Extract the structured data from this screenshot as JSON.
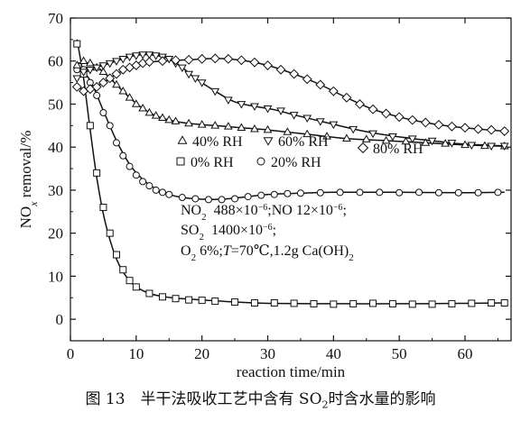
{
  "chart_data": {
    "type": "scatter",
    "xlabel": "reaction time/min",
    "ylabel_html": "NO<tspan font-style=\"italic\" baseline-shift=\"sub\" font-size=\"12\">x</tspan> removal/%",
    "ylabel": "NOx removal/%",
    "xlim": [
      0,
      67
    ],
    "ylim": [
      -5,
      70
    ],
    "xticks": [
      0,
      10,
      20,
      30,
      40,
      50,
      60
    ],
    "yticks": [
      0,
      10,
      20,
      30,
      40,
      50,
      60,
      70
    ],
    "grid": false,
    "legend_position": "middle",
    "series": [
      {
        "name": "0% RH",
        "marker": "square",
        "points": [
          [
            1,
            64
          ],
          [
            2,
            57
          ],
          [
            3,
            45
          ],
          [
            4,
            34
          ],
          [
            5,
            26
          ],
          [
            6,
            20
          ],
          [
            7,
            15
          ],
          [
            8,
            11.5
          ],
          [
            9,
            9
          ],
          [
            10,
            7.5
          ],
          [
            12,
            6
          ],
          [
            14,
            5.2
          ],
          [
            16,
            4.8
          ],
          [
            18,
            4.5
          ],
          [
            20,
            4.4
          ],
          [
            22,
            4.2
          ],
          [
            25,
            4
          ],
          [
            28,
            3.8
          ],
          [
            31,
            3.8
          ],
          [
            34,
            3.7
          ],
          [
            37,
            3.6
          ],
          [
            40,
            3.5
          ],
          [
            43,
            3.6
          ],
          [
            46,
            3.7
          ],
          [
            49,
            3.6
          ],
          [
            52,
            3.5
          ],
          [
            55,
            3.5
          ],
          [
            58,
            3.6
          ],
          [
            61,
            3.7
          ],
          [
            64,
            3.8
          ],
          [
            66,
            3.8
          ]
        ],
        "curve": [
          [
            1,
            65
          ],
          [
            2,
            56
          ],
          [
            3,
            44
          ],
          [
            4,
            33
          ],
          [
            5,
            24.5
          ],
          [
            6,
            18.5
          ],
          [
            7,
            14
          ],
          [
            8,
            11
          ],
          [
            9,
            9
          ],
          [
            10,
            7.5
          ],
          [
            12,
            6
          ],
          [
            14,
            5.3
          ],
          [
            16,
            4.9
          ],
          [
            20,
            4.5
          ],
          [
            25,
            4
          ],
          [
            30,
            3.7
          ],
          [
            40,
            3.6
          ],
          [
            50,
            3.6
          ],
          [
            60,
            3.7
          ],
          [
            66,
            3.8
          ]
        ]
      },
      {
        "name": "20% RH",
        "marker": "circle",
        "points": [
          [
            1,
            58
          ],
          [
            2,
            58
          ],
          [
            3,
            55
          ],
          [
            4,
            52
          ],
          [
            5,
            48
          ],
          [
            6,
            45
          ],
          [
            7,
            41
          ],
          [
            8,
            38
          ],
          [
            9,
            35.5
          ],
          [
            10,
            33.5
          ],
          [
            11,
            32
          ],
          [
            12,
            31
          ],
          [
            13,
            30
          ],
          [
            14,
            29.5
          ],
          [
            15,
            29
          ],
          [
            17,
            28.3
          ],
          [
            19,
            28
          ],
          [
            21,
            27.8
          ],
          [
            23,
            27.8
          ],
          [
            25,
            28
          ],
          [
            27,
            28.5
          ],
          [
            29,
            28.8
          ],
          [
            31,
            29
          ],
          [
            33,
            29.2
          ],
          [
            35,
            29.3
          ],
          [
            38,
            29.4
          ],
          [
            41,
            29.5
          ],
          [
            44,
            29.5
          ],
          [
            47,
            29.5
          ],
          [
            50,
            29.4
          ],
          [
            53,
            29.5
          ],
          [
            56,
            29.4
          ],
          [
            59,
            29.4
          ],
          [
            62,
            29.4
          ],
          [
            65,
            29.5
          ]
        ],
        "curve": [
          [
            1,
            59
          ],
          [
            3,
            55.5
          ],
          [
            5,
            48.5
          ],
          [
            7,
            41.5
          ],
          [
            9,
            36
          ],
          [
            11,
            32.5
          ],
          [
            13,
            30.3
          ],
          [
            15,
            29
          ],
          [
            17,
            28.3
          ],
          [
            20,
            27.9
          ],
          [
            23,
            27.9
          ],
          [
            26,
            28.3
          ],
          [
            30,
            29
          ],
          [
            35,
            29.3
          ],
          [
            40,
            29.5
          ],
          [
            50,
            29.5
          ],
          [
            60,
            29.4
          ],
          [
            66,
            29.5
          ]
        ]
      },
      {
        "name": "40% RH",
        "marker": "triangle-up",
        "points": [
          [
            1,
            59
          ],
          [
            2,
            60
          ],
          [
            3,
            59.5
          ],
          [
            4,
            58.5
          ],
          [
            5,
            57.5
          ],
          [
            6,
            56
          ],
          [
            7,
            54.5
          ],
          [
            8,
            53
          ],
          [
            9,
            51.5
          ],
          [
            10,
            50
          ],
          [
            11,
            49
          ],
          [
            12,
            48
          ],
          [
            13,
            47.3
          ],
          [
            14,
            46.8
          ],
          [
            15,
            46.3
          ],
          [
            16,
            46
          ],
          [
            18,
            45.5
          ],
          [
            20,
            45.2
          ],
          [
            22,
            45
          ],
          [
            24,
            44.8
          ],
          [
            26,
            44.5
          ],
          [
            28,
            44.2
          ],
          [
            30,
            44
          ],
          [
            33,
            43.5
          ],
          [
            36,
            43
          ],
          [
            39,
            42.5
          ],
          [
            42,
            42
          ],
          [
            45,
            41.8
          ],
          [
            48,
            41.5
          ],
          [
            51,
            41.3
          ],
          [
            54,
            41
          ],
          [
            57,
            40.8
          ],
          [
            60,
            40.5
          ],
          [
            63,
            40.3
          ],
          [
            66,
            40.2
          ]
        ],
        "curve": [
          [
            1,
            59.5
          ],
          [
            3,
            59.5
          ],
          [
            5,
            57.5
          ],
          [
            7,
            54.5
          ],
          [
            9,
            51.5
          ],
          [
            11,
            49
          ],
          [
            13,
            47.3
          ],
          [
            15,
            46.3
          ],
          [
            18,
            45.5
          ],
          [
            22,
            45
          ],
          [
            26,
            44.5
          ],
          [
            30,
            44
          ],
          [
            36,
            43
          ],
          [
            42,
            42
          ],
          [
            48,
            41.5
          ],
          [
            54,
            41
          ],
          [
            60,
            40.5
          ],
          [
            66,
            40.2
          ]
        ]
      },
      {
        "name": "60% RH",
        "marker": "triangle-down",
        "points": [
          [
            1,
            56
          ],
          [
            2,
            57.5
          ],
          [
            3,
            58
          ],
          [
            4,
            58.5
          ],
          [
            5,
            59
          ],
          [
            6,
            59.5
          ],
          [
            7,
            60
          ],
          [
            8,
            60.5
          ],
          [
            9,
            61
          ],
          [
            10,
            61.3
          ],
          [
            11,
            61.5
          ],
          [
            12,
            61.5
          ],
          [
            13,
            61.3
          ],
          [
            14,
            61
          ],
          [
            15,
            60.5
          ],
          [
            16,
            59.5
          ],
          [
            17,
            58.5
          ],
          [
            18,
            57
          ],
          [
            19,
            56
          ],
          [
            20,
            55
          ],
          [
            22,
            53
          ],
          [
            24,
            51
          ],
          [
            26,
            50
          ],
          [
            28,
            49.5
          ],
          [
            30,
            49
          ],
          [
            32,
            48.5
          ],
          [
            34,
            47.5
          ],
          [
            36,
            46.8
          ],
          [
            38,
            46
          ],
          [
            40,
            45.3
          ],
          [
            43,
            44.2
          ],
          [
            46,
            43.2
          ],
          [
            49,
            42.5
          ],
          [
            52,
            42
          ],
          [
            55,
            41.5
          ],
          [
            58,
            41
          ],
          [
            61,
            40.5
          ],
          [
            64,
            40.3
          ],
          [
            66,
            40.3
          ]
        ],
        "curve": [
          [
            1,
            56
          ],
          [
            3,
            58
          ],
          [
            5,
            59
          ],
          [
            7,
            60
          ],
          [
            9,
            61
          ],
          [
            11,
            61.5
          ],
          [
            13,
            61.3
          ],
          [
            15,
            60.5
          ],
          [
            17,
            58.5
          ],
          [
            19,
            56
          ],
          [
            22,
            53
          ],
          [
            25,
            50.5
          ],
          [
            28,
            49.5
          ],
          [
            31,
            48.7
          ],
          [
            34,
            47.5
          ],
          [
            37,
            46.4
          ],
          [
            40,
            45.3
          ],
          [
            44,
            43.9
          ],
          [
            48,
            42.8
          ],
          [
            52,
            42
          ],
          [
            56,
            41.3
          ],
          [
            60,
            40.7
          ],
          [
            66,
            40.3
          ]
        ]
      },
      {
        "name": "80% RH",
        "marker": "diamond",
        "points": [
          [
            1,
            54
          ],
          [
            2,
            53
          ],
          [
            3,
            53.5
          ],
          [
            4,
            54
          ],
          [
            5,
            55
          ],
          [
            6,
            56
          ],
          [
            7,
            57
          ],
          [
            8,
            58
          ],
          [
            9,
            58.5
          ],
          [
            10,
            59
          ],
          [
            11,
            59.5
          ],
          [
            12,
            59.8
          ],
          [
            14,
            60
          ],
          [
            16,
            60.2
          ],
          [
            18,
            60.3
          ],
          [
            20,
            60.5
          ],
          [
            22,
            60.6
          ],
          [
            24,
            60.5
          ],
          [
            26,
            60.2
          ],
          [
            28,
            59.7
          ],
          [
            30,
            59
          ],
          [
            32,
            58
          ],
          [
            34,
            57
          ],
          [
            36,
            55.8
          ],
          [
            38,
            54.5
          ],
          [
            40,
            53
          ],
          [
            42,
            51.5
          ],
          [
            44,
            50
          ],
          [
            46,
            48.8
          ],
          [
            48,
            47.8
          ],
          [
            50,
            47
          ],
          [
            52,
            46.3
          ],
          [
            54,
            45.7
          ],
          [
            56,
            45.2
          ],
          [
            58,
            44.8
          ],
          [
            60,
            44.5
          ],
          [
            62,
            44.2
          ],
          [
            64,
            44
          ],
          [
            66,
            43.7
          ]
        ],
        "curve": [
          [
            1,
            53.8
          ],
          [
            3,
            53.5
          ],
          [
            5,
            55
          ],
          [
            7,
            57
          ],
          [
            9,
            58.5
          ],
          [
            11,
            59.5
          ],
          [
            14,
            60
          ],
          [
            18,
            60.3
          ],
          [
            22,
            60.6
          ],
          [
            26,
            60.2
          ],
          [
            30,
            59
          ],
          [
            34,
            57
          ],
          [
            38,
            54.5
          ],
          [
            42,
            51.5
          ],
          [
            46,
            48.8
          ],
          [
            50,
            47
          ],
          [
            54,
            45.7
          ],
          [
            58,
            44.8
          ],
          [
            62,
            44.2
          ],
          [
            66,
            43.7
          ]
        ]
      }
    ],
    "legend": [
      {
        "series": 2,
        "label": "40% RH"
      },
      {
        "series": 3,
        "label": "60% RH"
      },
      {
        "series": 4,
        "label": "80% RH"
      },
      {
        "series": 0,
        "label": "0% RH"
      },
      {
        "series": 1,
        "label": "20% RH"
      }
    ],
    "annotations": {
      "line1_html": "NO<tspan baseline-shift=\"sub\" font-size=\"11\">2</tspan>&#160;&#160;488×10<tspan baseline-shift=\"super\" font-size=\"10\">−6</tspan>;NO 12×10<tspan baseline-shift=\"super\" font-size=\"10\">−6</tspan>;",
      "line2_html": "SO<tspan baseline-shift=\"sub\" font-size=\"11\">2</tspan>&#160;&#160;1400×10<tspan baseline-shift=\"super\" font-size=\"10\">−6</tspan>;",
      "line3_html": "O<tspan baseline-shift=\"sub\" font-size=\"11\">2</tspan> 6%;<tspan font-style=\"italic\">T</tspan>=70℃,1.2g Ca(OH)<tspan baseline-shift=\"sub\" font-size=\"11\">2</tspan>",
      "line1": "NO2 488×10−6;NO 12×10−6;",
      "line2": "SO2 1400×10−6;",
      "line3": "O2 6%;T=70℃,1.2g Ca(OH)2"
    }
  },
  "caption": {
    "prefix": "图 13　半干法吸收工艺中含有 SO",
    "sub": "2",
    "suffix": "时含水量的影响"
  }
}
